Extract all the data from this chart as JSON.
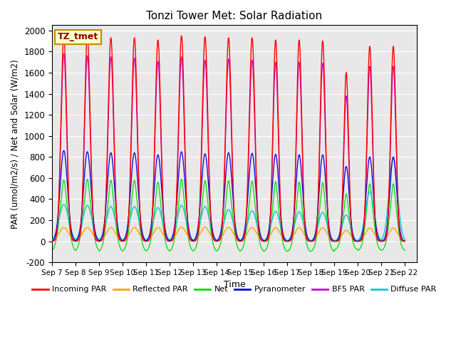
{
  "title": "Tonzi Tower Met: Solar Radiation",
  "ylabel": "PAR (umol/m2/s) / Net and Solar (W/m2)",
  "xlabel": "Time",
  "ylim": [
    -200,
    2050
  ],
  "xlim_days": [
    0,
    15.5
  ],
  "yticks": [
    -200,
    0,
    200,
    400,
    600,
    800,
    1000,
    1200,
    1400,
    1600,
    1800,
    2000
  ],
  "xtick_labels": [
    "Sep 7",
    "Sep 8",
    "Sep 9",
    "Sep 10",
    "Sep 11",
    "Sep 12",
    "Sep 13",
    "Sep 14",
    "Sep 15",
    "Sep 16",
    "Sep 17",
    "Sep 18",
    "Sep 19",
    "Sep 20",
    "Sep 21",
    "Sep 22"
  ],
  "legend_box_label": "TZ_tmet",
  "bg_color": "#e8e8e8",
  "series": {
    "incoming_par": {
      "color": "#ff0000",
      "label": "Incoming PAR"
    },
    "reflected_par": {
      "color": "#ffa500",
      "label": "Reflected PAR"
    },
    "net": {
      "color": "#00dd00",
      "label": "Net"
    },
    "pyranometer": {
      "color": "#0000dd",
      "label": "Pyranometer"
    },
    "bf5_par": {
      "color": "#cc00cc",
      "label": "BF5 PAR"
    },
    "diffuse_par": {
      "color": "#00cccc",
      "label": "Diffuse PAR"
    }
  },
  "n_days": 15,
  "points_per_day": 576,
  "incoming_peaks": [
    1950,
    1950,
    1930,
    1930,
    1910,
    1950,
    1940,
    1930,
    1930,
    1910,
    1910,
    1900,
    1600,
    1850,
    1850
  ],
  "bf5_peaks": [
    1780,
    1760,
    1750,
    1740,
    1710,
    1750,
    1720,
    1730,
    1720,
    1700,
    1700,
    1690,
    1380,
    1660,
    1660
  ],
  "pyrano_peaks": [
    860,
    850,
    840,
    840,
    820,
    850,
    830,
    840,
    835,
    825,
    820,
    820,
    710,
    800,
    800
  ],
  "net_peaks": [
    580,
    590,
    580,
    580,
    560,
    590,
    575,
    575,
    570,
    565,
    560,
    555,
    450,
    545,
    545
  ],
  "net_night": [
    -100,
    -100,
    -100,
    -100,
    -100,
    -100,
    -100,
    -100,
    -100,
    -100,
    -100,
    -100,
    -80,
    -90,
    -90
  ],
  "reflected_peaks": [
    130,
    130,
    130,
    130,
    130,
    135,
    132,
    132,
    131,
    130,
    130,
    128,
    105,
    125,
    125
  ],
  "diffuse_peaks": [
    350,
    340,
    330,
    330,
    320,
    340,
    330,
    300,
    290,
    285,
    280,
    275,
    250,
    470,
    790
  ],
  "day_widths": [
    0.12,
    0.12,
    0.12,
    0.12,
    0.12,
    0.12,
    0.12,
    0.12,
    0.12,
    0.11,
    0.11,
    0.11,
    0.1,
    0.11,
    0.11
  ],
  "reflected_widths": [
    0.2,
    0.2,
    0.19,
    0.19,
    0.19,
    0.19,
    0.19,
    0.19,
    0.19,
    0.18,
    0.18,
    0.18,
    0.17,
    0.18,
    0.18
  ],
  "net_widths": [
    0.18,
    0.18,
    0.17,
    0.17,
    0.17,
    0.17,
    0.17,
    0.17,
    0.17,
    0.16,
    0.16,
    0.16,
    0.15,
    0.16,
    0.16
  ]
}
